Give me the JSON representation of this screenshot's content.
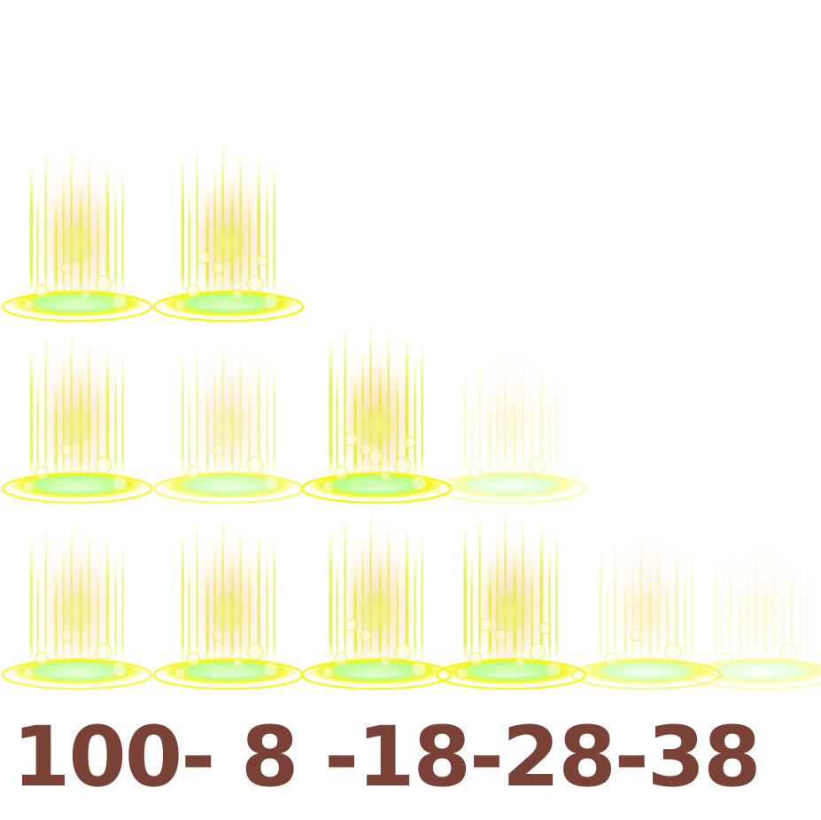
{
  "sprite_sheet": {
    "caption": "100- 8 -18-28-38",
    "caption_color": "#7a4136",
    "effect_colors": {
      "core": "#f8ffb0",
      "streak": "#d8ec10",
      "glow": "#ffb46e",
      "ring": "#f5f500",
      "ring_hi": "#a8ff7a",
      "bubble": "#fffde0"
    },
    "rows": [
      {
        "frames": [
          {
            "opacity": 1.0,
            "intensity": 1.0,
            "bubbles": 6
          },
          {
            "opacity": 1.0,
            "intensity": 1.15,
            "bubbles": 8
          }
        ]
      },
      {
        "frames": [
          {
            "opacity": 1.0,
            "intensity": 0.9,
            "bubbles": 5
          },
          {
            "opacity": 0.8,
            "intensity": 0.7,
            "bubbles": 4
          },
          {
            "opacity": 1.0,
            "intensity": 1.2,
            "bubbles": 9
          },
          {
            "opacity": 0.55,
            "intensity": 0.35,
            "bubbles": 2
          }
        ]
      },
      {
        "frames": [
          {
            "opacity": 0.95,
            "intensity": 0.8,
            "bubbles": 5
          },
          {
            "opacity": 1.0,
            "intensity": 0.95,
            "bubbles": 6
          },
          {
            "opacity": 1.0,
            "intensity": 1.05,
            "bubbles": 7
          },
          {
            "opacity": 1.0,
            "intensity": 1.1,
            "bubbles": 8
          },
          {
            "opacity": 0.75,
            "intensity": 0.45,
            "bubbles": 3
          },
          {
            "opacity": 0.5,
            "intensity": 0.25,
            "bubbles": 2
          }
        ]
      }
    ]
  }
}
